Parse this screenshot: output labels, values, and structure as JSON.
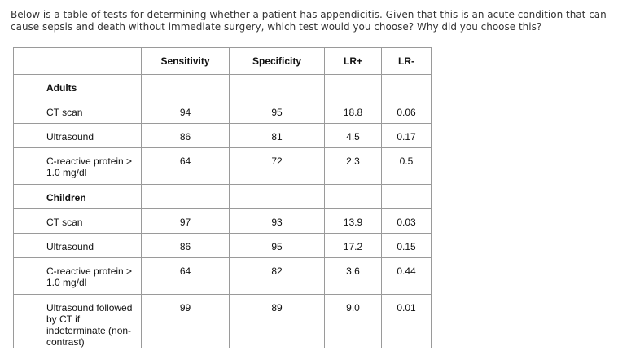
{
  "question": "Below is a table of tests for determining whether a patient has appendicitis. Given that this is an acute condition that can cause sepsis and death without immediate surgery, which test would you choose? Why did you choose this?",
  "table": {
    "headers": [
      "",
      "Sensitivity",
      "Specificity",
      "LR+",
      "LR-"
    ],
    "adults_label": "Adults",
    "children_label": "Children",
    "adults_rows": [
      {
        "test": "CT scan",
        "sensitivity": "94",
        "specificity": "95",
        "lr_pos": "18.8",
        "lr_neg": "0.06"
      },
      {
        "test": "Ultrasound",
        "sensitivity": "86",
        "specificity": "81",
        "lr_pos": "4.5",
        "lr_neg": "0.17"
      },
      {
        "test": "C-reactive protein > 1.0 mg/dl",
        "sensitivity": "64",
        "specificity": "72",
        "lr_pos": "2.3",
        "lr_neg": "0.5"
      }
    ],
    "children_rows": [
      {
        "test": "CT scan",
        "sensitivity": "97",
        "specificity": "93",
        "lr_pos": "13.9",
        "lr_neg": "0.03"
      },
      {
        "test": "Ultrasound",
        "sensitivity": "86",
        "specificity": "95",
        "lr_pos": "17.2",
        "lr_neg": "0.15"
      },
      {
        "test": "C-reactive protein > 1.0 mg/dl",
        "sensitivity": "64",
        "specificity": "82",
        "lr_pos": "3.6",
        "lr_neg": "0.44"
      },
      {
        "test": "Ultrasound followed by CT if indeterminate (non-contrast)",
        "sensitivity": "99",
        "specificity": "89",
        "lr_pos": "9.0",
        "lr_neg": "0.01"
      }
    ]
  }
}
